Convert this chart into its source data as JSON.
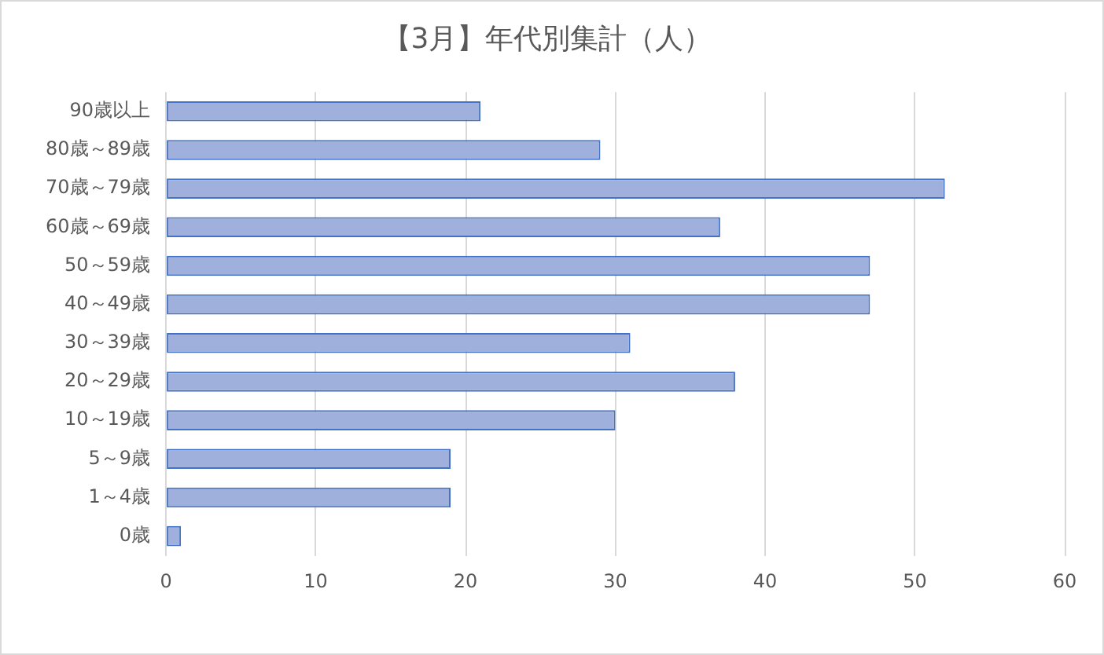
{
  "chart_data": {
    "type": "bar",
    "orientation": "horizontal",
    "title": "【3月】年代別集計（人）",
    "categories": [
      "90歳以上",
      "80歳～89歳",
      "70歳～79歳",
      "60歳～69歳",
      "50～59歳",
      "40～49歳",
      "30～39歳",
      "20～29歳",
      "10～19歳",
      "5～9歳",
      "1～4歳",
      "0歳"
    ],
    "values": [
      21,
      29,
      52,
      37,
      47,
      47,
      31,
      38,
      30,
      19,
      19,
      1
    ],
    "color": "#9fb0dd",
    "xlim": [
      0,
      60
    ],
    "xticks": [
      0,
      10,
      20,
      30,
      40,
      50,
      60
    ],
    "grid": "x"
  }
}
